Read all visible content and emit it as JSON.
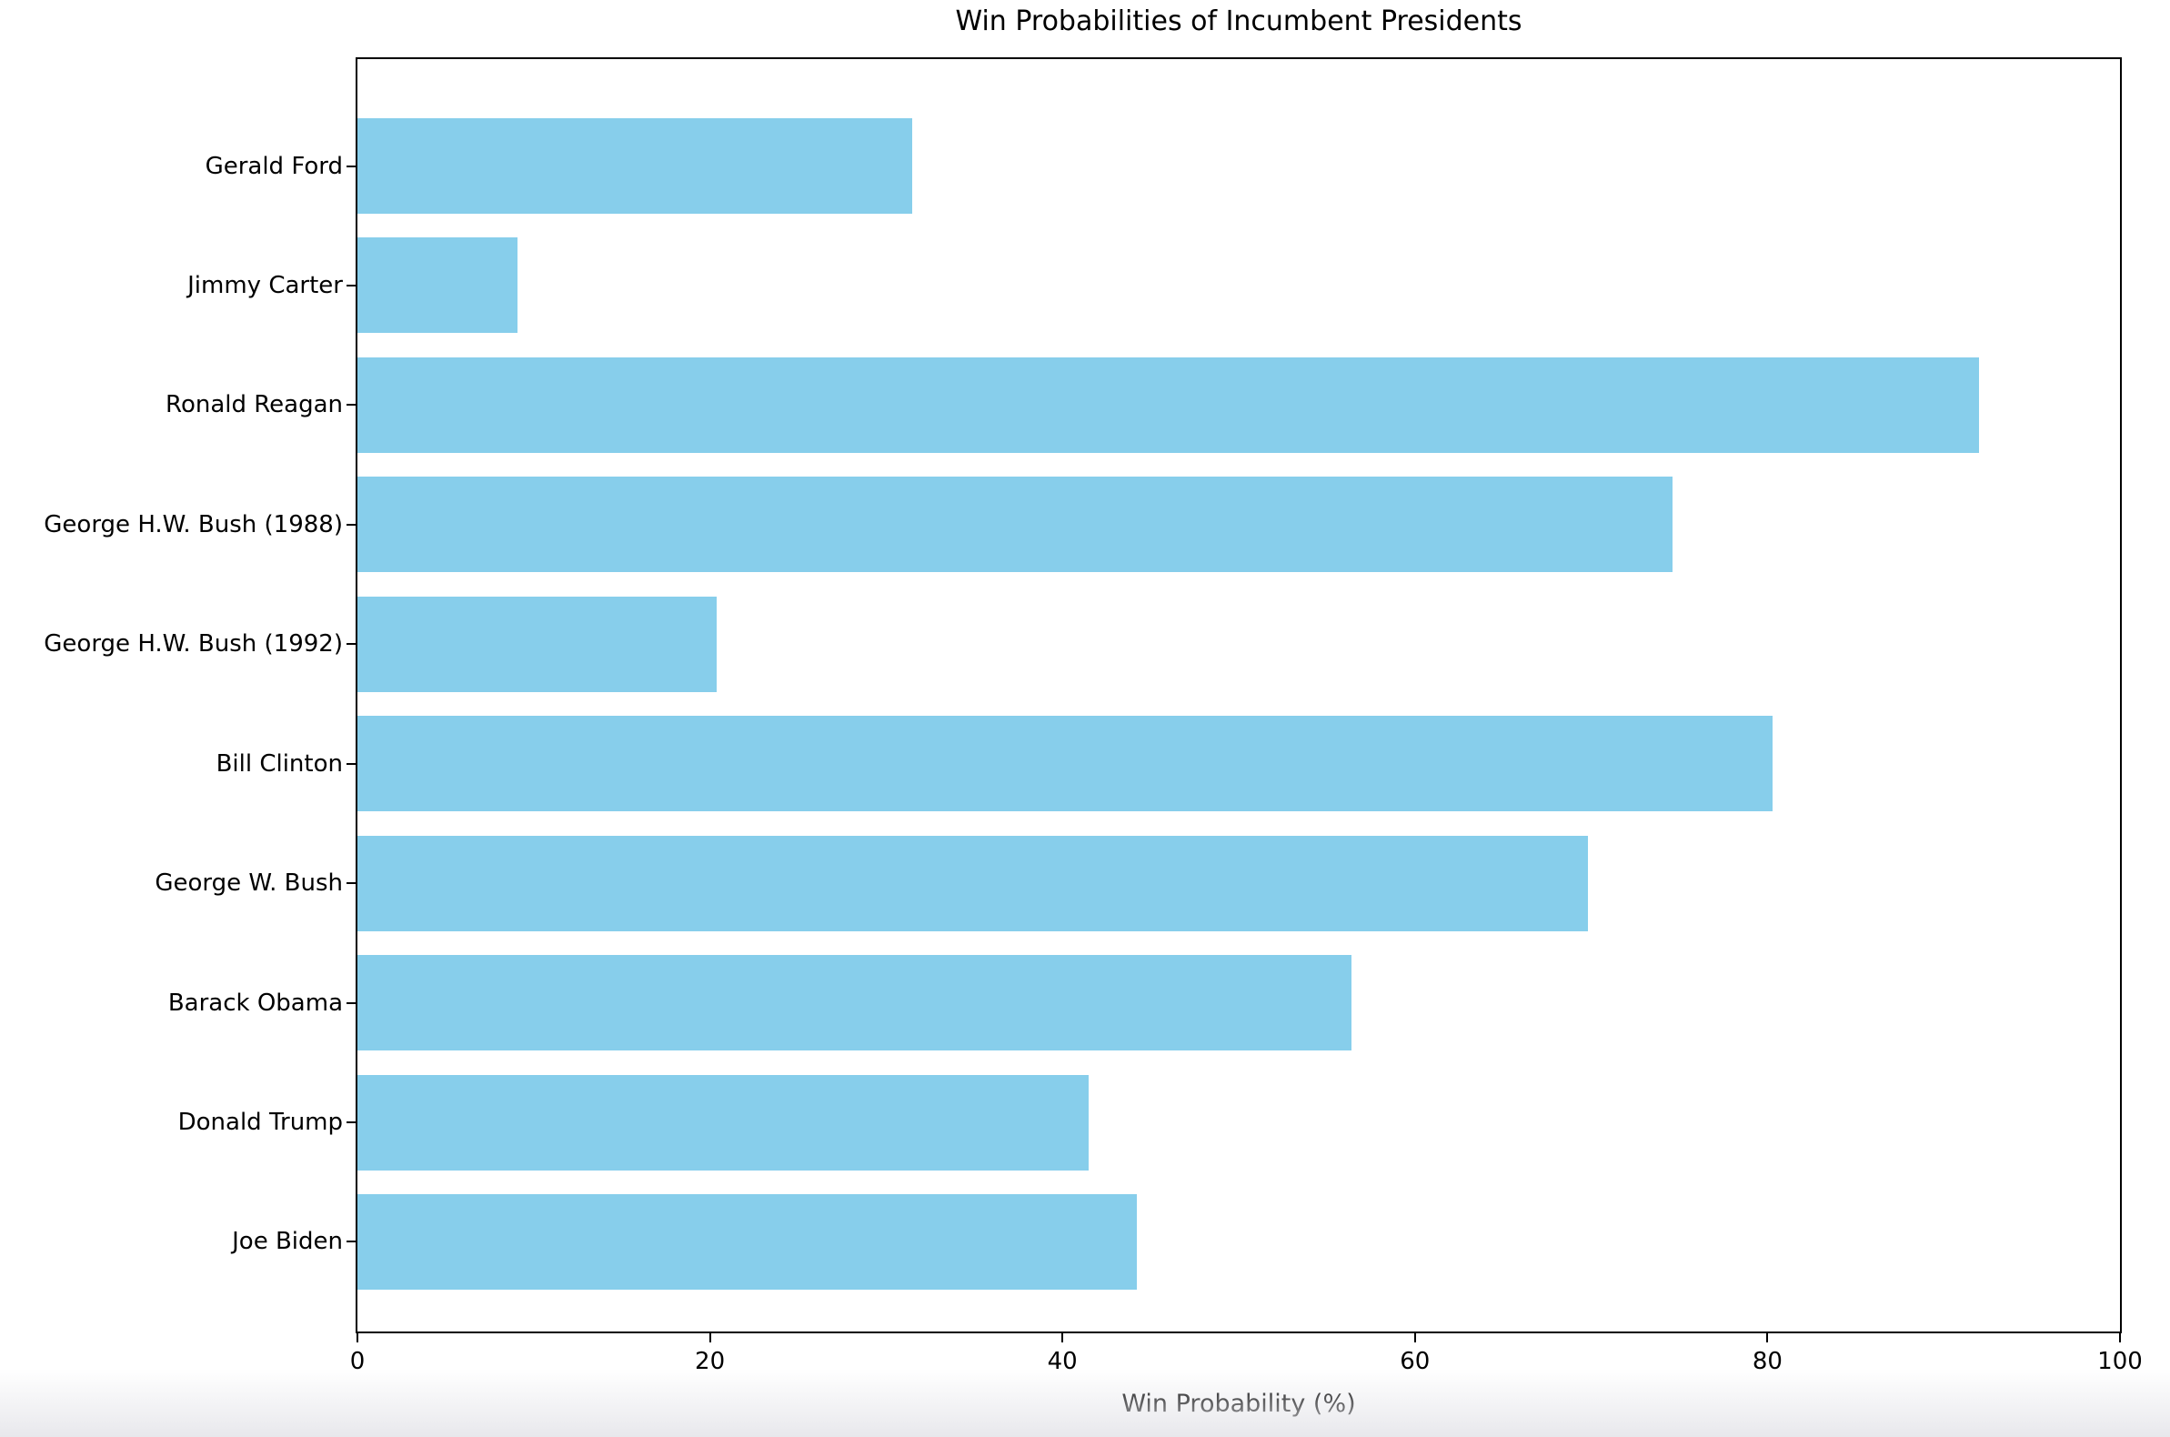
{
  "chart_data": {
    "type": "bar",
    "orientation": "horizontal",
    "title": "Win Probabilities of Incumbent Presidents",
    "xlabel": "Win Probability (%)",
    "ylabel": "",
    "categories": [
      "Gerald Ford",
      "Jimmy Carter",
      "Ronald Reagan",
      "George H.W. Bush (1988)",
      "George H.W. Bush (1992)",
      "Bill Clinton",
      "George W. Bush",
      "Barack Obama",
      "Donald Trump",
      "Joe Biden"
    ],
    "values": [
      31.5,
      9.1,
      92.0,
      74.6,
      20.4,
      80.3,
      69.8,
      56.4,
      41.5,
      44.2
    ],
    "xlim": [
      0,
      100
    ],
    "xticks": [
      0,
      20,
      40,
      60,
      80,
      100
    ],
    "bar_color": "#87CEEB",
    "grid": false,
    "legend": null
  }
}
